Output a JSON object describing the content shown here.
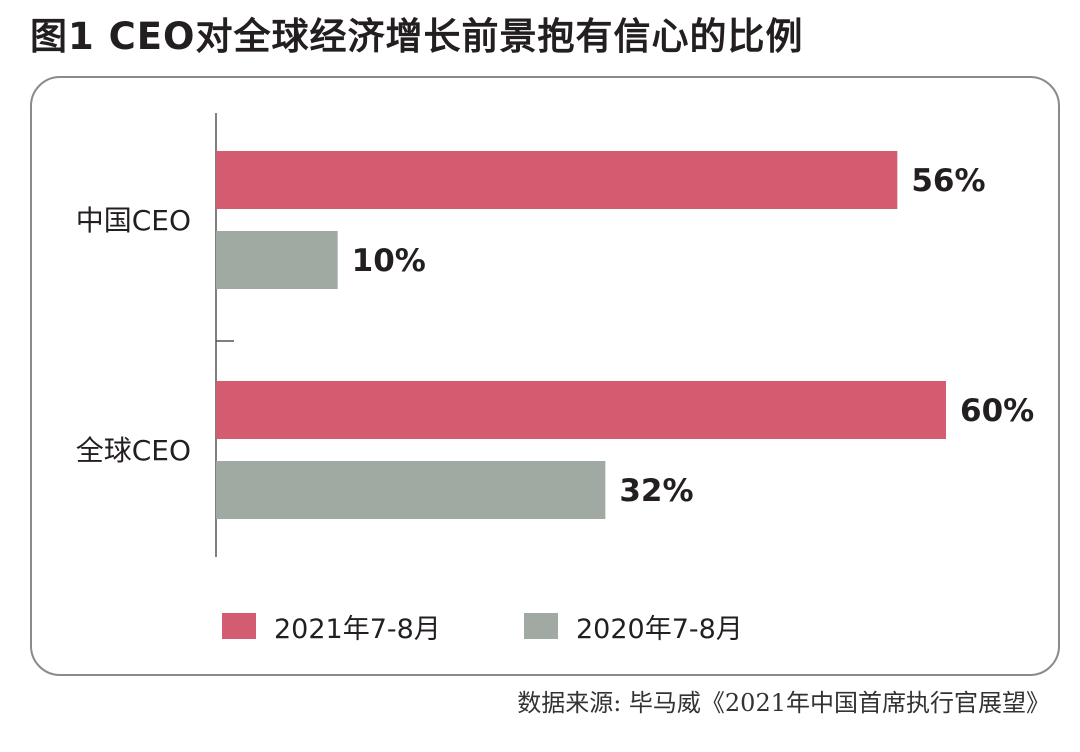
{
  "title": "图1 CEO对全球经济增长前景抱有信心的比例",
  "source": "数据来源: 毕马威《2021年中国首席执行官展望》",
  "colors": {
    "series_2021": "#d45c70",
    "series_2020": "#a0aaa3"
  },
  "chart_data": {
    "type": "bar",
    "orientation": "horizontal",
    "categories": [
      "中国CEO",
      "全球CEO"
    ],
    "series": [
      {
        "name": "2021年7-8月",
        "values": [
          56,
          60
        ],
        "labels": [
          "56%",
          "60%"
        ]
      },
      {
        "name": "2020年7-8月",
        "values": [
          10,
          32
        ],
        "labels": [
          "10%",
          "32%"
        ]
      }
    ],
    "xlim": [
      0,
      60
    ],
    "unit": "%",
    "grid": false,
    "legend_position": "bottom"
  }
}
